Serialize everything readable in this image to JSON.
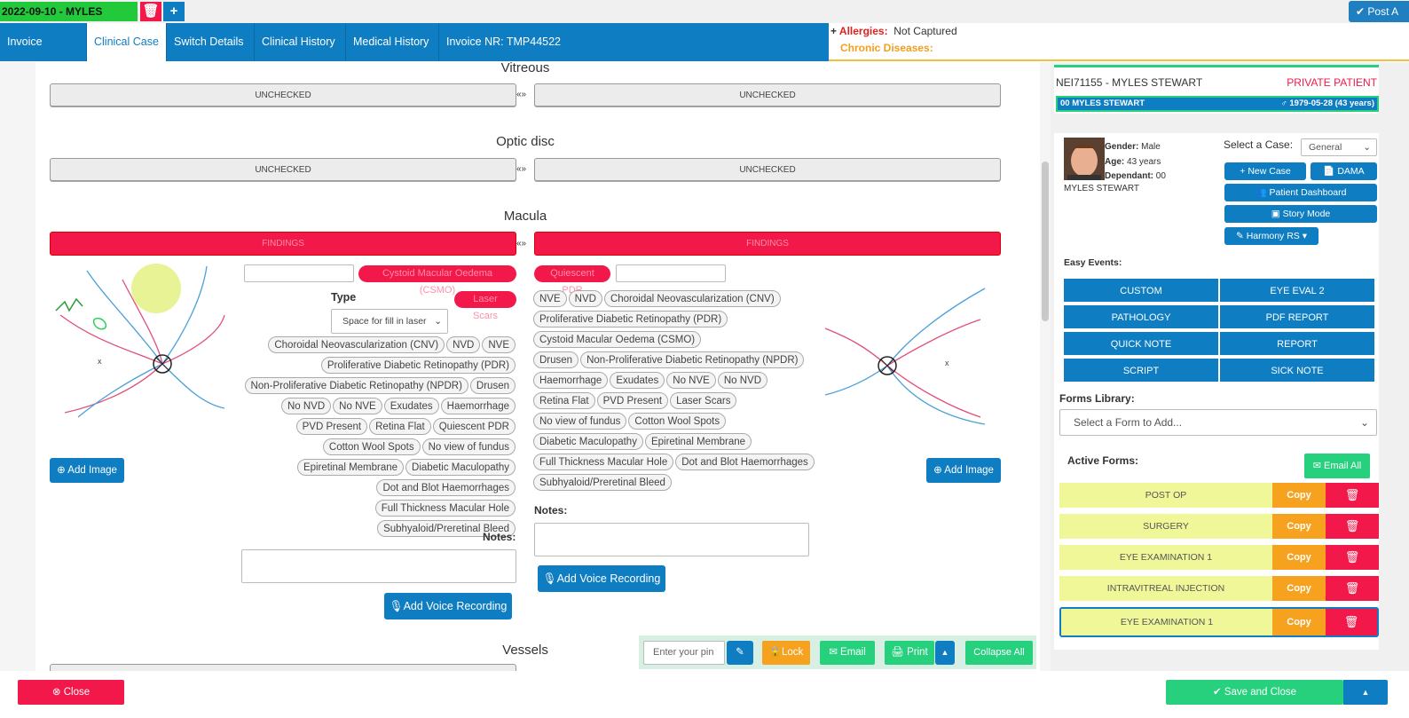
{
  "topbar": {
    "case_label": "2022-09-10 - MYLES",
    "post_label": "Post A"
  },
  "nav": {
    "tabs": [
      "Invoice Details",
      "Clinical Case",
      "Switch Details",
      "Clinical History",
      "Medical History",
      "Invoice NR: TMP44522"
    ]
  },
  "allergies": {
    "label": "Allergies:",
    "value": "Not Captured",
    "chronic_label": "Chronic Diseases:"
  },
  "sections": {
    "vitreous": "Vitreous",
    "optic": "Optic disc",
    "macula": "Macula",
    "vessels": "Vessels",
    "unchecked": "UNCHECKED",
    "swap": "«»",
    "findings": "FINDINGS"
  },
  "left": {
    "csmo": "Cystoid Macular Oedema (CSMO)",
    "type_label": "Type",
    "laser_scars": "Laser Scars",
    "select_placeholder": "Space for fill in laser",
    "tags": [
      "Choroidal Neovascularization (CNV)",
      "NVD",
      "NVE",
      "Proliferative Diabetic Retinopathy (PDR)",
      "Non-Proliferative Diabetic Retinopathy (NPDR)",
      "Drusen",
      "No NVD",
      "No NVE",
      "Exudates",
      "Haemorrhage",
      "PVD Present",
      "Retina Flat",
      "Quiescent PDR",
      "Cotton Wool Spots",
      "No view of fundus",
      "Epiretinal Membrane",
      "Diabetic Maculopathy",
      "Dot and Blot Haemorrhages",
      "Full Thickness Macular Hole",
      "Subhyaloid/Preretinal Bleed"
    ],
    "notes_label": "Notes:",
    "voice": "Add Voice Recording",
    "add_image": "Add Image"
  },
  "rightexam": {
    "quiescent": "Quiescent PDR",
    "tags": [
      "NVE",
      "NVD",
      "Choroidal Neovascularization (CNV)",
      "Proliferative Diabetic Retinopathy (PDR)",
      "Cystoid Macular Oedema (CSMO)",
      "Drusen",
      "Non-Proliferative Diabetic Retinopathy (NPDR)",
      "Haemorrhage",
      "Exudates",
      "No NVE",
      "No NVD",
      "Retina Flat",
      "PVD Present",
      "Laser Scars",
      "No view of fundus",
      "Cotton Wool Spots",
      "Diabetic Maculopathy",
      "Epiretinal Membrane",
      "Full Thickness Macular Hole",
      "Dot and Blot Haemorrhages",
      "Subhyaloid/Preretinal Bleed"
    ],
    "notes_label": "Notes:",
    "voice": "Add Voice Recording",
    "add_image": "Add Image"
  },
  "toolbar": {
    "pin_placeholder": "Enter your pin",
    "lock": "Lock",
    "email": "Email",
    "print": "Print",
    "collapse": "Collapse All"
  },
  "patient": {
    "id_name": "NEI71155 - MYLES STEWART",
    "type": "PRIVATE PATIENT",
    "dep": "00 MYLES STEWART",
    "dob": "1979-05-28 (43 years)",
    "gender_l": "Gender:",
    "gender": "Male",
    "age_l": "Age:",
    "age": "43 years",
    "dependant_l": "Dependant:",
    "dependant": "00",
    "name": "MYLES STEWART",
    "select_case": "Select a Case:",
    "case_value": "General",
    "new_case": "New Case",
    "dama": "DAMA",
    "dashboard": "Patient Dashboard",
    "story": "Story Mode",
    "harmony": "Harmony RS"
  },
  "easy": {
    "label": "Easy Events:",
    "buttons": [
      "CUSTOM",
      "EYE EVAL 2",
      "PATHOLOGY",
      "PDF REPORT",
      "QUICK NOTE",
      "REPORT",
      "SCRIPT",
      "SICK NOTE"
    ]
  },
  "forms": {
    "library_label": "Forms Library:",
    "select_placeholder": "Select a Form to Add...",
    "active_label": "Active Forms:",
    "email_all": "Email All",
    "copy": "Copy",
    "items": [
      "POST OP",
      "SURGERY",
      "EYE EXAMINATION 1",
      "INTRAVITREAL INJECTION",
      "EYE EXAMINATION 1"
    ]
  },
  "bottom": {
    "close": "Close",
    "save": "Save and Close"
  }
}
